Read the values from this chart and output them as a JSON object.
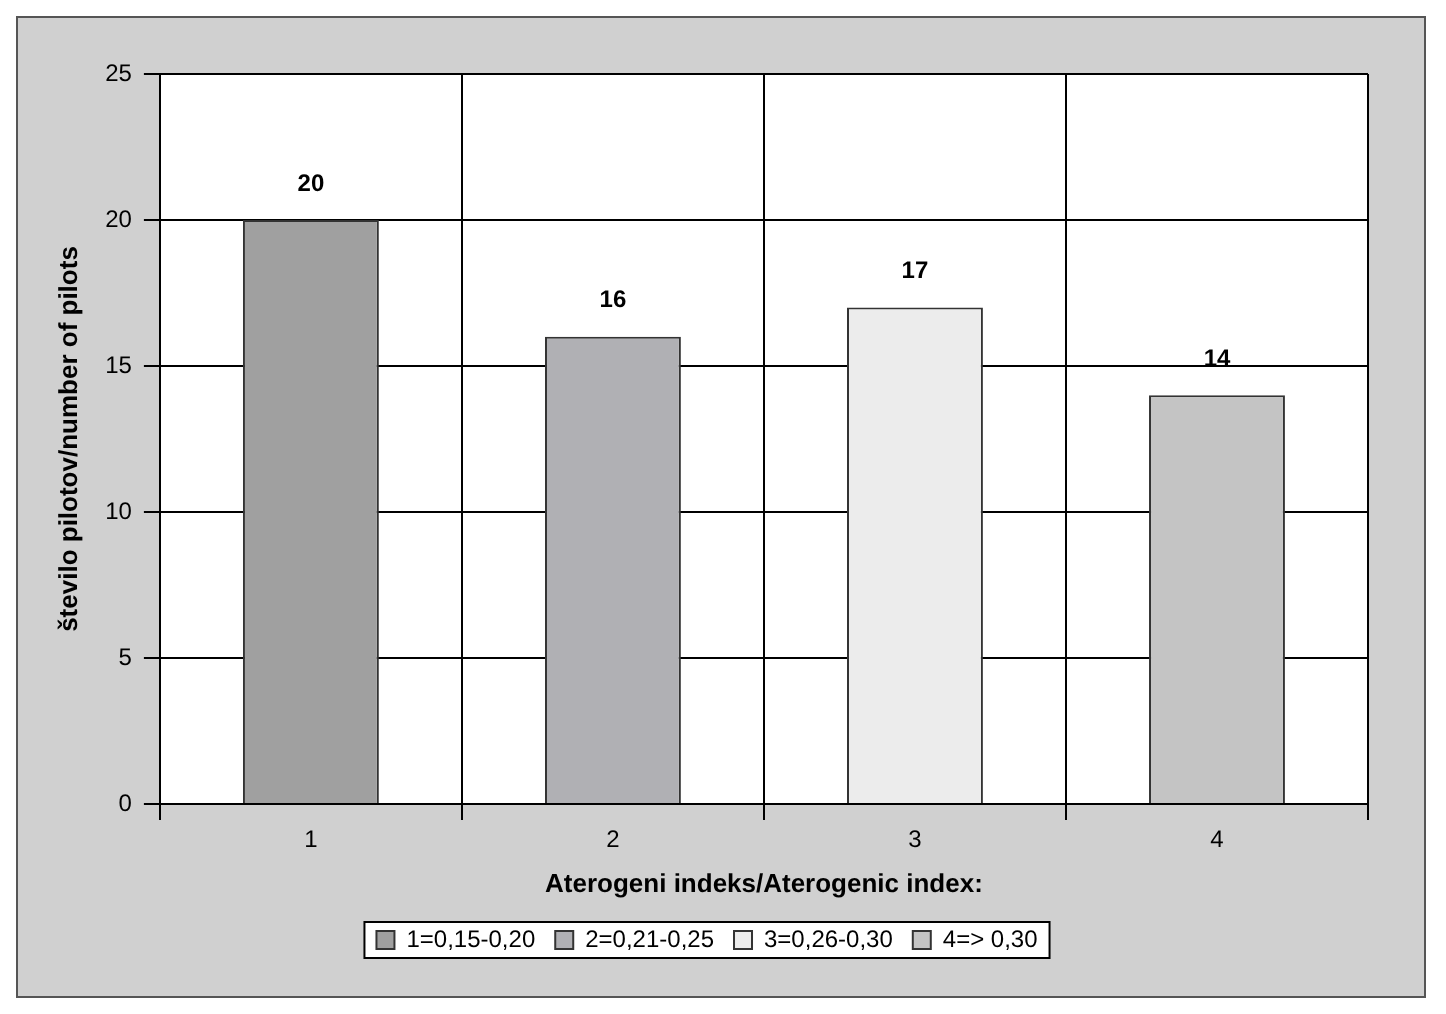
{
  "chart_data": {
    "type": "bar",
    "xlabel": "Aterogeni indeks/Aterogenic index:",
    "ylabel": "število pilotov/number of pilots",
    "categories": [
      "1",
      "2",
      "3",
      "4"
    ],
    "series": [
      {
        "name": "1=0,15-0,20",
        "color": "#a0a0a0",
        "values": [
          20,
          null,
          null,
          null
        ]
      },
      {
        "name": "2=0,21-0,25",
        "color": "#b0b0b4",
        "values": [
          null,
          16,
          null,
          null
        ]
      },
      {
        "name": "3=0,26-0,30",
        "color": "#ececec",
        "values": [
          null,
          null,
          17,
          null
        ]
      },
      {
        "name": "4=> 0,30",
        "color": "#c4c4c4",
        "values": [
          null,
          null,
          null,
          14
        ]
      }
    ],
    "ylim": [
      0,
      25
    ],
    "yticks": [
      0,
      5,
      10,
      15,
      20,
      25
    ],
    "grid": true,
    "legend": "bottom",
    "data_labels": true
  }
}
